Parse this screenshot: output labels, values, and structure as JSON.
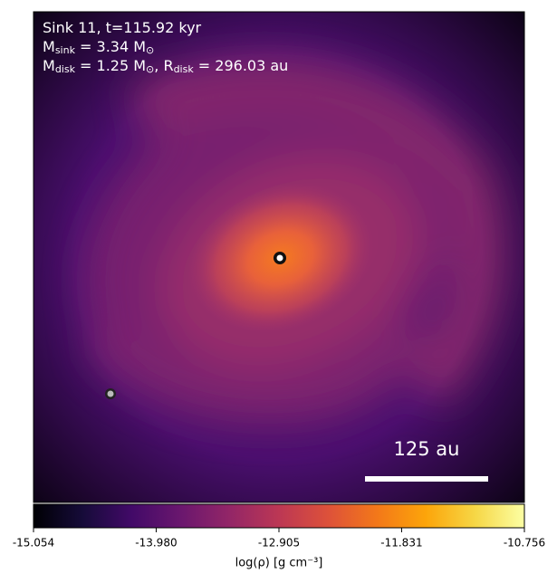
{
  "chart_data": {
    "type": "image",
    "title_lines": [
      [
        "Sink 11, t=115.92 kyr"
      ],
      [
        "M",
        "sink",
        " = 3.34 M",
        "⊙"
      ],
      [
        "M",
        "disk",
        " = 1.25 M",
        "⊙",
        ", R",
        "disk",
        " = 296.03 au"
      ]
    ],
    "scale_bar_label": "125 au",
    "colorbar": {
      "label": "log(ρ) [g cm⁻³]",
      "clim": [
        -15.054,
        -10.756
      ],
      "ticks": [
        -15.054,
        {
          "value": -13.98,
          "label": "-13.980"
        },
        -12.905,
        -11.831,
        -10.756
      ]
    }
  }
}
